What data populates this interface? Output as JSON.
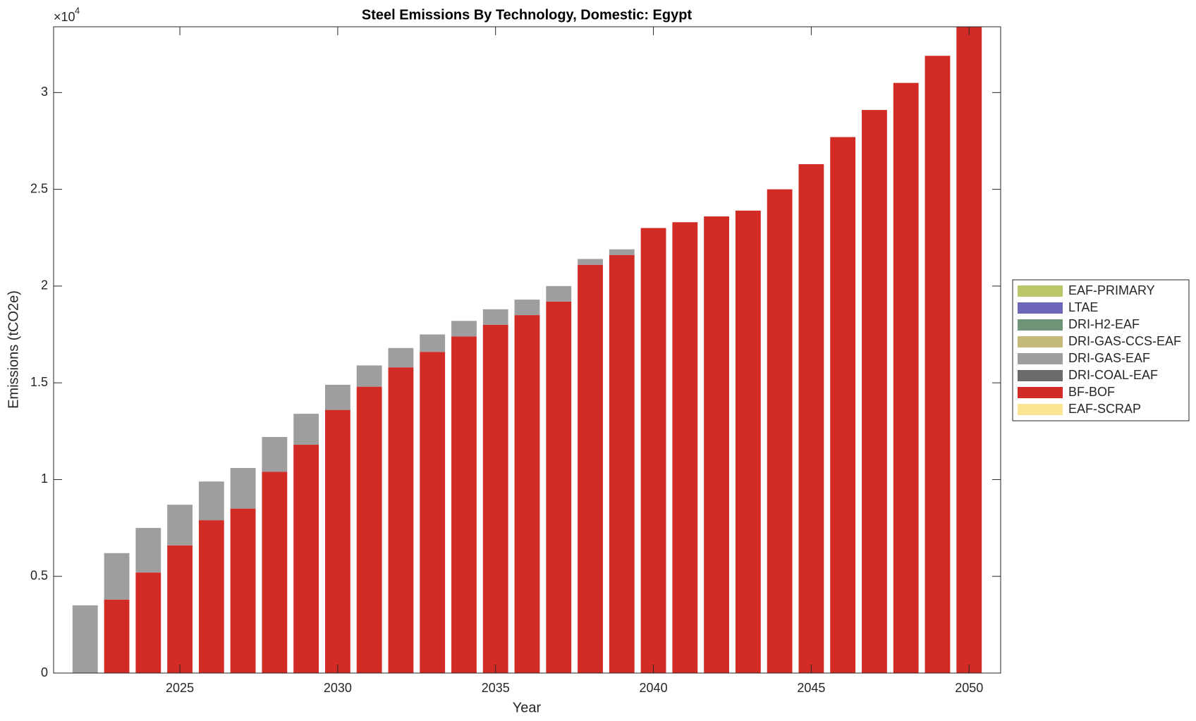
{
  "chart_data": {
    "type": "stacked_bar",
    "title": "Steel Emissions By Technology, Domestic: Egypt",
    "x_label": "Year",
    "y_label": "Emissions (tCO2e)",
    "y_multiplier": {
      "base": "×10",
      "exponent": "4"
    },
    "x": [
      2022,
      2023,
      2024,
      2025,
      2026,
      2027,
      2028,
      2029,
      2030,
      2031,
      2032,
      2033,
      2034,
      2035,
      2036,
      2037,
      2038,
      2039,
      2040,
      2041,
      2042,
      2043,
      2044,
      2045,
      2046,
      2047,
      2048,
      2049,
      2050
    ],
    "xlim": [
      2021,
      2051
    ],
    "xticks": [
      2025,
      2030,
      2035,
      2040,
      2045,
      2050
    ],
    "ylim": [
      0,
      3.34
    ],
    "yticks": [
      0,
      0.5,
      1,
      1.5,
      2,
      2.5,
      3
    ],
    "legend": "outside-right",
    "series": [
      {
        "name": "EAF-PRIMARY",
        "color": "#bcc66a",
        "values": [
          0,
          0,
          0,
          0,
          0,
          0,
          0,
          0,
          0,
          0,
          0,
          0,
          0,
          0,
          0,
          0,
          0,
          0,
          0,
          0,
          0,
          0,
          0,
          0,
          0,
          0,
          0,
          0,
          0
        ]
      },
      {
        "name": "LTAE",
        "color": "#6e66b8",
        "values": [
          0,
          0,
          0,
          0,
          0,
          0,
          0,
          0,
          0,
          0,
          0,
          0,
          0,
          0,
          0,
          0,
          0,
          0,
          0,
          0,
          0,
          0,
          0,
          0,
          0,
          0,
          0,
          0,
          0
        ]
      },
      {
        "name": "DRI-H2-EAF",
        "color": "#6f9478",
        "values": [
          0,
          0,
          0,
          0,
          0,
          0,
          0,
          0,
          0,
          0,
          0,
          0,
          0,
          0,
          0,
          0,
          0,
          0,
          0,
          0,
          0,
          0,
          0,
          0,
          0,
          0,
          0,
          0,
          0
        ]
      },
      {
        "name": "DRI-GAS-CCS-EAF",
        "color": "#c4bb7a",
        "values": [
          0,
          0,
          0,
          0,
          0,
          0,
          0,
          0,
          0,
          0,
          0,
          0,
          0,
          0,
          0,
          0,
          0,
          0,
          0,
          0,
          0,
          0,
          0,
          0,
          0,
          0,
          0,
          0,
          0
        ]
      },
      {
        "name": "DRI-GAS-EAF",
        "color": "#9e9e9e",
        "values": [
          0.35,
          0.24,
          0.23,
          0.21,
          0.2,
          0.21,
          0.18,
          0.16,
          0.13,
          0.11,
          0.1,
          0.09,
          0.08,
          0.08,
          0.08,
          0.08,
          0.03,
          0.03,
          0,
          0,
          0,
          0,
          0,
          0,
          0,
          0,
          0,
          0,
          0
        ]
      },
      {
        "name": "DRI-COAL-EAF",
        "color": "#6b6b6b",
        "values": [
          0,
          0,
          0,
          0,
          0,
          0,
          0,
          0,
          0,
          0,
          0,
          0,
          0,
          0,
          0,
          0,
          0,
          0,
          0,
          0,
          0,
          0,
          0,
          0,
          0,
          0,
          0,
          0,
          0
        ]
      },
      {
        "name": "BF-BOF",
        "color": "#d22b26",
        "values": [
          0,
          0.38,
          0.52,
          0.66,
          0.79,
          0.85,
          1.04,
          1.18,
          1.36,
          1.48,
          1.58,
          1.66,
          1.74,
          1.8,
          1.85,
          1.92,
          2.11,
          2.16,
          2.3,
          2.33,
          2.36,
          2.39,
          2.5,
          2.63,
          2.77,
          2.91,
          3.05,
          3.19,
          3.34
        ]
      },
      {
        "name": "EAF-SCRAP",
        "color": "#fde394",
        "values": [
          0,
          0,
          0,
          0,
          0,
          0,
          0,
          0,
          0,
          0,
          0,
          0,
          0,
          0,
          0,
          0,
          0,
          0,
          0,
          0,
          0,
          0,
          0,
          0,
          0,
          0,
          0,
          0,
          0
        ]
      }
    ]
  }
}
